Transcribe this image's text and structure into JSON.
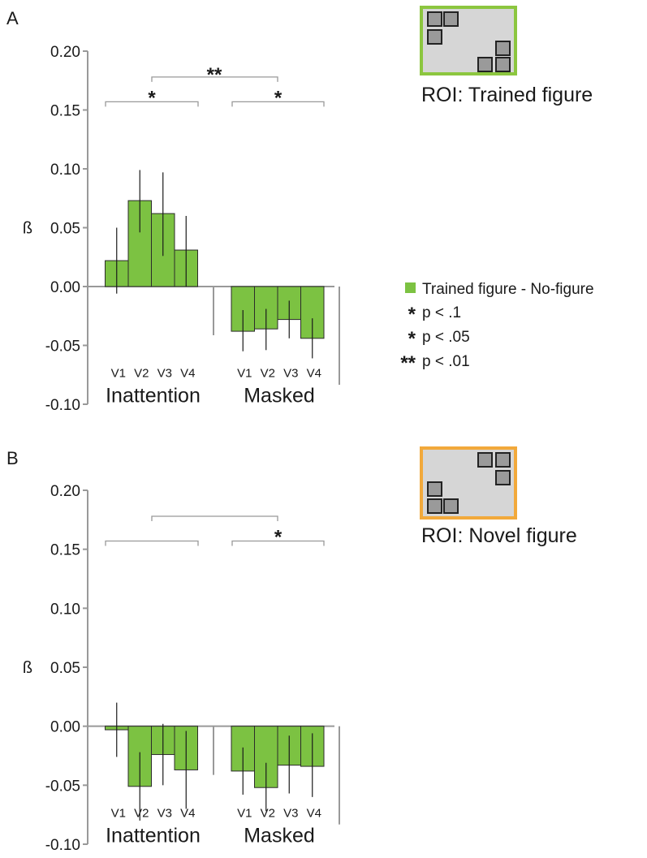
{
  "colors": {
    "bar": "#7cc242",
    "bar_stroke": "#2b2b2b",
    "axis": "#999999",
    "grey_star": "#a9a9a9",
    "black_star": "#1a1a1a",
    "trained_frame": "#8cc63f",
    "novel_frame": "#f2a93b",
    "roi_fill": "#d6d6d6",
    "square_fill": "#9a9a9a"
  },
  "legend": {
    "series_label": "Trained figure - No-figure",
    "sig_grey": {
      "stars": "*",
      "label": "p < .1"
    },
    "sig_one": {
      "stars": "*",
      "label": "p < .05"
    },
    "sig_two": {
      "stars": "**",
      "label": "p < .01"
    }
  },
  "panels": [
    {
      "letter": "A",
      "roi_label": "ROI: Trained figure",
      "roi_frame_color": "#8cc63f",
      "sig": {
        "overall": "**",
        "left": "*",
        "left_color": "grey",
        "right": "*",
        "right_color": "black"
      }
    },
    {
      "letter": "B",
      "roi_label": "ROI: Novel figure",
      "roi_frame_color": "#f2a93b",
      "sig": {
        "overall": "",
        "left": "",
        "left_color": "grey",
        "right": "*",
        "right_color": "grey"
      }
    }
  ],
  "chart_data": [
    {
      "type": "bar",
      "panel": "A",
      "ylabel": "ß",
      "ylim": [
        -0.1,
        0.2
      ],
      "yticks": [
        "0.20",
        "0.15",
        "0.10",
        "0.05",
        "0.00",
        "-0.05",
        "-0.10"
      ],
      "groups": [
        "Inattention",
        "Masked"
      ],
      "categories": [
        "V1",
        "V2",
        "V3",
        "V4"
      ],
      "series": [
        {
          "group": "Inattention",
          "values": [
            0.022,
            0.073,
            0.062,
            0.031
          ],
          "err_low": [
            -0.006,
            0.046,
            0.026,
            0.0
          ],
          "err_high": [
            0.05,
            0.099,
            0.097,
            0.06
          ]
        },
        {
          "group": "Masked",
          "values": [
            -0.038,
            -0.036,
            -0.028,
            -0.044
          ],
          "err_low": [
            -0.055,
            -0.054,
            -0.044,
            -0.061
          ],
          "err_high": [
            -0.02,
            -0.019,
            -0.012,
            -0.027
          ]
        }
      ]
    },
    {
      "type": "bar",
      "panel": "B",
      "ylabel": "ß",
      "ylim": [
        -0.1,
        0.2
      ],
      "yticks": [
        "0.20",
        "0.15",
        "0.10",
        "0.05",
        "0.00",
        "-0.05",
        "-0.10"
      ],
      "groups": [
        "Inattention",
        "Masked"
      ],
      "categories": [
        "V1",
        "V2",
        "V3",
        "V4"
      ],
      "series": [
        {
          "group": "Inattention",
          "values": [
            -0.003,
            -0.051,
            -0.024,
            -0.037
          ],
          "err_low": [
            -0.026,
            -0.08,
            -0.05,
            -0.07
          ],
          "err_high": [
            0.02,
            -0.022,
            0.002,
            -0.004
          ]
        },
        {
          "group": "Masked",
          "values": [
            -0.038,
            -0.052,
            -0.033,
            -0.034
          ],
          "err_low": [
            -0.058,
            -0.072,
            -0.057,
            -0.06
          ],
          "err_high": [
            -0.018,
            -0.031,
            -0.008,
            -0.006
          ]
        }
      ]
    }
  ]
}
